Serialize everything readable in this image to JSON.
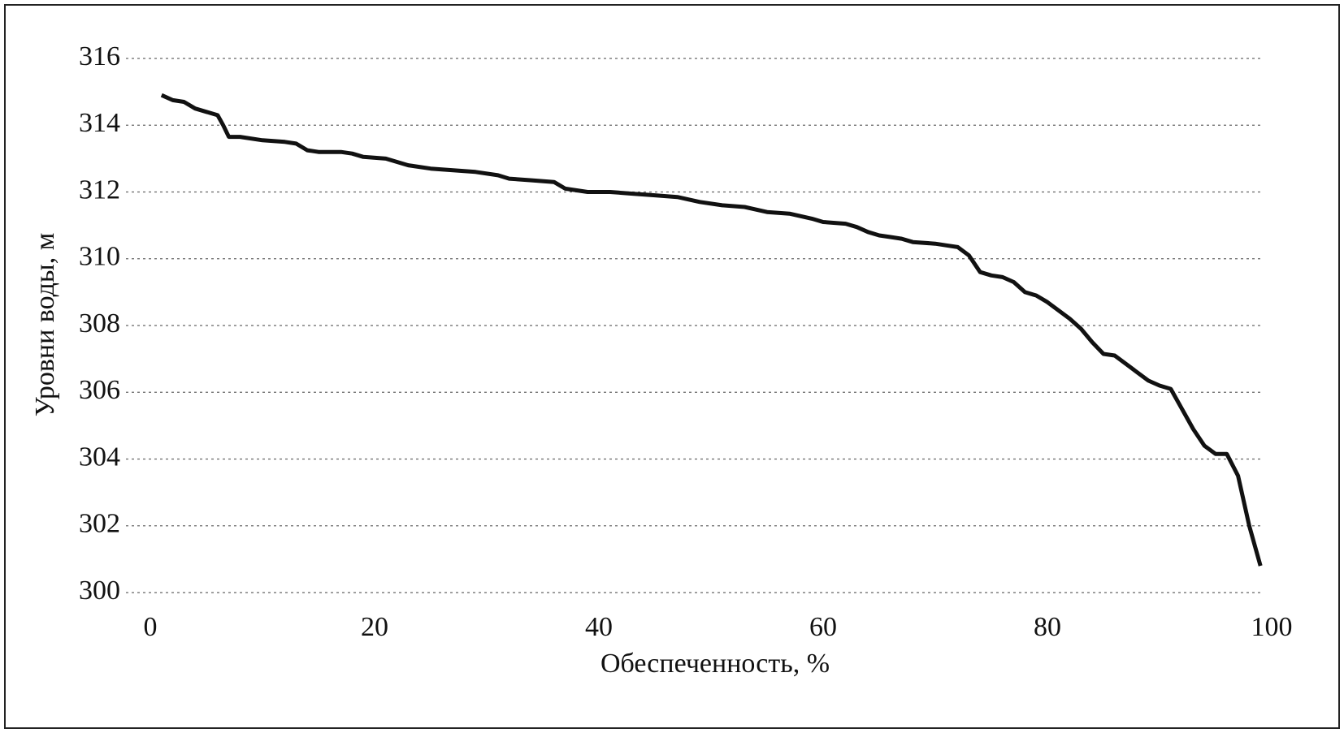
{
  "chart_data": {
    "type": "line",
    "x_label": "Обеспеченность, %",
    "y_label": "Уровни воды, м",
    "xlim": [
      0,
      100
    ],
    "xticks": [
      0,
      20,
      40,
      60,
      80,
      100
    ],
    "ylim": [
      300,
      316
    ],
    "yticks": [
      300,
      302,
      304,
      306,
      308,
      310,
      312,
      314,
      316
    ],
    "grid": true,
    "series": [
      {
        "color": "#111111",
        "x": [
          1,
          2,
          3,
          4,
          5,
          6,
          6.5,
          7,
          8,
          10,
          12,
          13,
          14,
          15,
          17,
          18,
          19,
          21,
          22,
          23,
          25,
          27,
          29,
          31,
          32,
          34,
          36,
          37,
          39,
          41,
          43,
          45,
          47,
          49,
          51,
          53,
          55,
          57,
          59,
          60,
          62,
          63,
          64,
          65,
          66,
          67,
          68,
          70,
          71,
          72,
          73,
          74,
          75,
          76,
          77,
          78,
          79,
          80,
          81,
          82,
          83,
          84,
          85,
          86,
          87,
          88,
          89,
          90,
          91,
          92,
          93,
          94,
          95,
          96,
          97,
          98,
          99
        ],
        "values": [
          314.9,
          314.75,
          314.7,
          314.5,
          314.4,
          314.3,
          314.0,
          313.65,
          313.65,
          313.55,
          313.5,
          313.45,
          313.25,
          313.2,
          313.2,
          313.15,
          313.05,
          313.0,
          312.9,
          312.8,
          312.7,
          312.65,
          312.6,
          312.5,
          312.4,
          312.35,
          312.3,
          312.1,
          312.0,
          312.0,
          311.95,
          311.9,
          311.85,
          311.7,
          311.6,
          311.55,
          311.4,
          311.35,
          311.2,
          311.1,
          311.05,
          310.95,
          310.8,
          310.7,
          310.65,
          310.6,
          310.5,
          310.45,
          310.4,
          310.35,
          310.1,
          309.6,
          309.5,
          309.45,
          309.3,
          309.0,
          308.9,
          308.7,
          308.45,
          308.2,
          307.9,
          307.5,
          307.15,
          307.1,
          306.85,
          306.6,
          306.35,
          306.2,
          306.1,
          305.5,
          304.9,
          304.4,
          304.15,
          304.15,
          303.5,
          302.0,
          300.8
        ]
      }
    ]
  }
}
